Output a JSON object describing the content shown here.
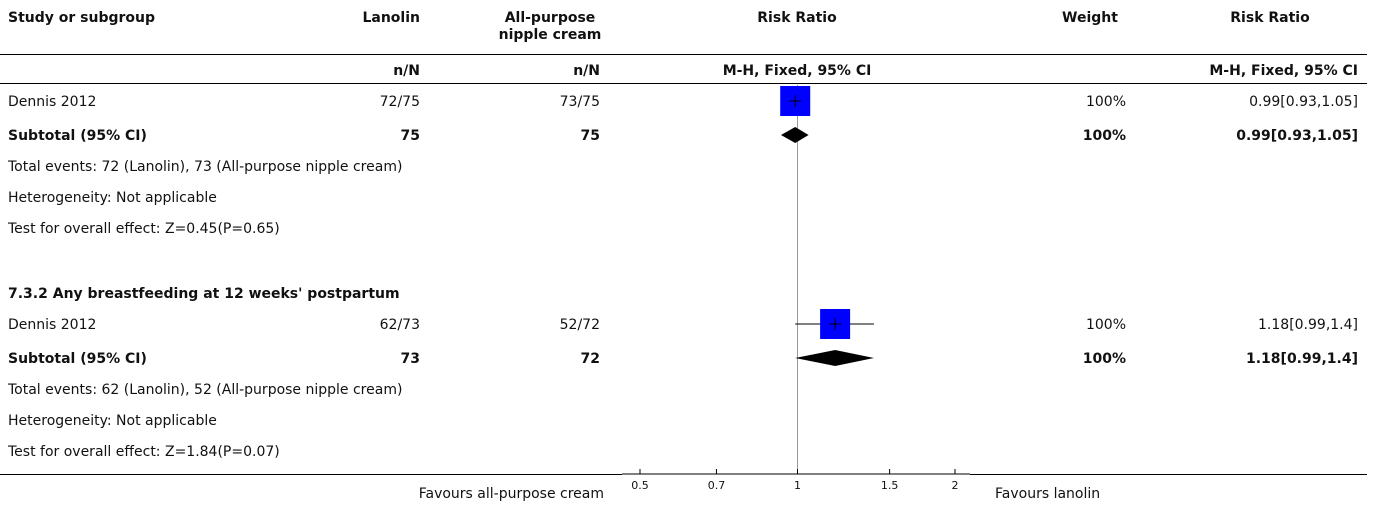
{
  "header": {
    "study": "Study or subgroup",
    "exp": "Lanolin",
    "ctrl_line1": "All-purpose",
    "ctrl_line2": "nipple cream",
    "rr_plot": "Risk Ratio",
    "weight": "Weight",
    "rr_text": "Risk Ratio",
    "exp_sub": "n/N",
    "ctrl_sub": "n/N",
    "rr_plot_sub": "M-H, Fixed, 95% CI",
    "rr_text_sub": "M-H, Fixed, 95% CI"
  },
  "groups": [
    {
      "heading": "",
      "study": {
        "name": "Dennis 2012",
        "exp": "72/75",
        "ctrl": "73/75",
        "weight": "100%",
        "rr": "0.99[0.93,1.05]"
      },
      "subtotal": {
        "label": "Subtotal (95% CI)",
        "exp": "75",
        "ctrl": "75",
        "weight": "100%",
        "rr": "0.99[0.93,1.05]"
      },
      "notes": [
        "Total events: 72 (Lanolin), 73 (All-purpose nipple cream)",
        "Heterogeneity: Not applicable",
        "Test for overall effect: Z=0.45(P=0.65)"
      ]
    },
    {
      "heading": "7.3.2 Any breastfeeding at 12 weeks' postpartum",
      "study": {
        "name": "Dennis 2012",
        "exp": "62/73",
        "ctrl": "52/72",
        "weight": "100%",
        "rr": "1.18[0.99,1.4]"
      },
      "subtotal": {
        "label": "Subtotal (95% CI)",
        "exp": "73",
        "ctrl": "72",
        "weight": "100%",
        "rr": "1.18[0.99,1.4]"
      },
      "notes": [
        "Total events: 62 (Lanolin), 52 (All-purpose nipple cream)",
        "Heterogeneity: Not applicable",
        "Test for overall effect: Z=1.84(P=0.07)"
      ]
    }
  ],
  "footer": {
    "favours_left": "Favours all-purpose cream",
    "favours_right": "Favours lanolin"
  },
  "chart_data": {
    "type": "forest",
    "scale": "log",
    "xlim": [
      0.5,
      2
    ],
    "ticks": [
      0.5,
      0.7,
      1,
      1.5,
      2
    ],
    "tick_labels": [
      "0.5",
      "0.7",
      "1",
      "1.5",
      "2"
    ],
    "null_line": 1,
    "studies": [
      {
        "name": "Dennis 2012",
        "group": 0,
        "rr": 0.99,
        "lo": 0.93,
        "hi": 1.05,
        "weight": 100
      },
      {
        "name": "Dennis 2012",
        "group": 1,
        "rr": 1.18,
        "lo": 0.99,
        "hi": 1.4,
        "weight": 100
      }
    ],
    "subtotals": [
      {
        "group": 0,
        "rr": 0.99,
        "lo": 0.93,
        "hi": 1.05
      },
      {
        "group": 1,
        "rr": 1.18,
        "lo": 0.99,
        "hi": 1.4
      }
    ],
    "colors": {
      "study_box": "#0000ff",
      "diamond": "#000000",
      "lines": "#000000",
      "null_line": "#999999"
    }
  }
}
